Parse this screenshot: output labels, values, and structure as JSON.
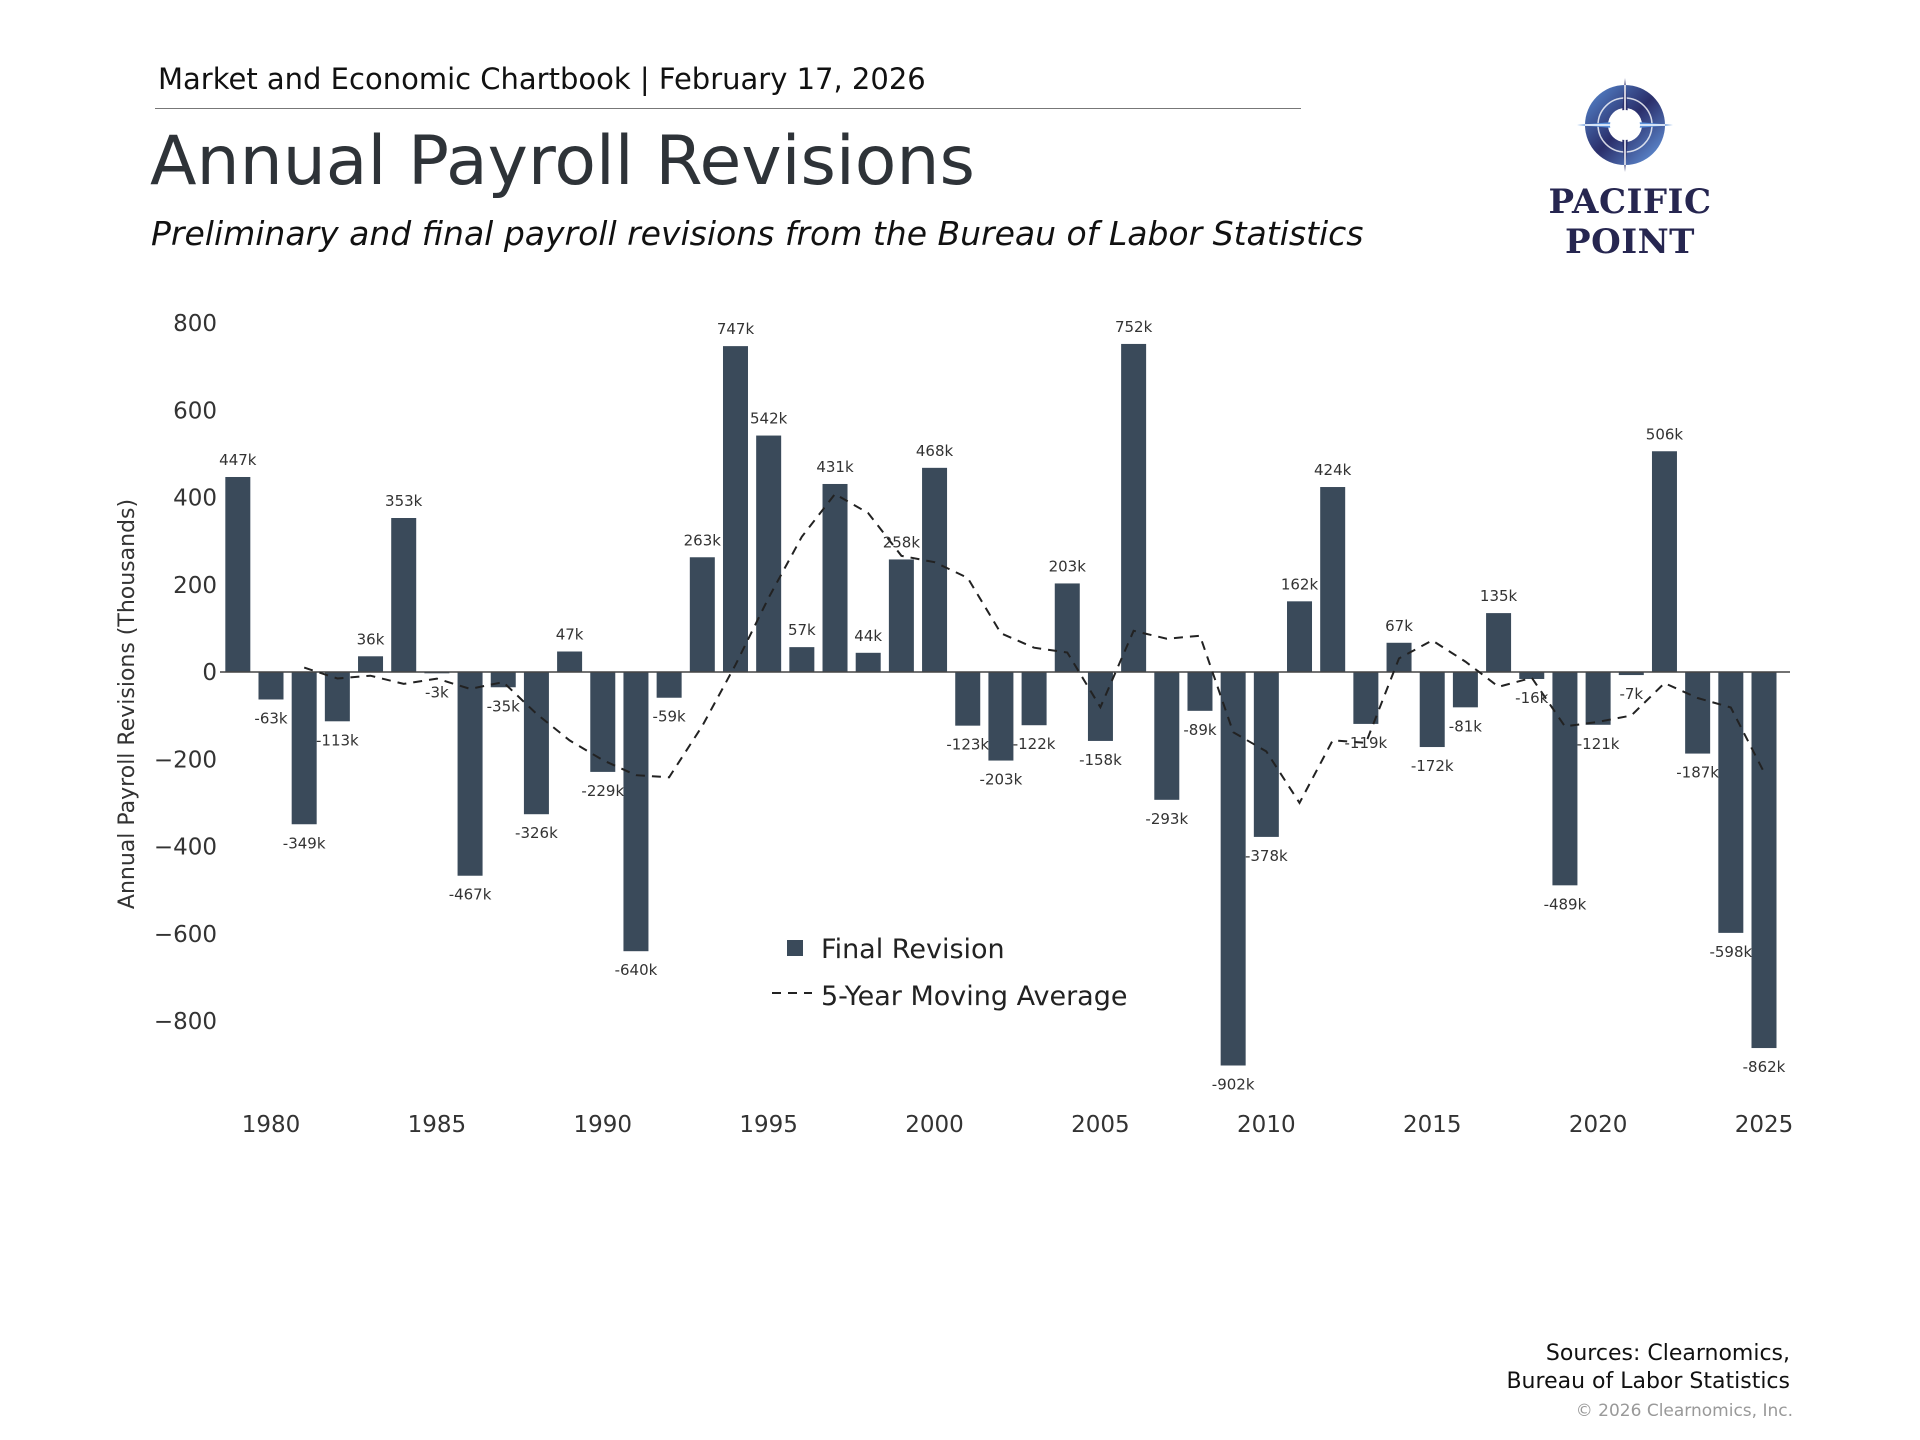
{
  "header": {
    "chartbook": "Market and Economic Chartbook | February 17, 2026",
    "title": "Annual Payroll Revisions",
    "subtitle": "Preliminary and final payroll revisions from the Bureau of Labor Statistics"
  },
  "logo": {
    "text": "PACIFIC POINT",
    "icon": "compass-icon"
  },
  "footer": {
    "sources_line1": "Sources: Clearnomics,",
    "sources_line2": "Bureau of Labor Statistics",
    "copyright": "© 2026 Clearnomics, Inc."
  },
  "chart_data": {
    "type": "bar",
    "title": "",
    "xlabel": "",
    "ylabel": "Annual Payroll Revisions (Thousands)",
    "ylim": [
      -950,
      850
    ],
    "yticks": [
      800,
      600,
      400,
      200,
      0,
      -200,
      -400,
      -600,
      -800
    ],
    "ytick_labels": [
      "800",
      "600",
      "400",
      "200",
      "0",
      "−200",
      "−400",
      "−600",
      "−800"
    ],
    "xticks": [
      1980,
      1985,
      1990,
      1995,
      2000,
      2005,
      2010,
      2015,
      2020,
      2025
    ],
    "grid": false,
    "legend_placement": "bottom-center",
    "colors": {
      "bar": "#3a4a5a",
      "line": "#222222"
    },
    "x": [
      1979,
      1980,
      1981,
      1982,
      1983,
      1984,
      1985,
      1986,
      1987,
      1988,
      1989,
      1990,
      1991,
      1992,
      1993,
      1994,
      1995,
      1996,
      1997,
      1998,
      1999,
      2000,
      2001,
      2002,
      2003,
      2004,
      2005,
      2006,
      2007,
      2008,
      2009,
      2010,
      2011,
      2012,
      2013,
      2014,
      2015,
      2016,
      2017,
      2018,
      2019,
      2020,
      2021,
      2022,
      2023,
      2024,
      2025
    ],
    "series": [
      {
        "name": "Final Revision",
        "type": "bar",
        "values": [
          447,
          -63,
          -349,
          -113,
          36,
          353,
          -3,
          -467,
          -35,
          -326,
          47,
          -229,
          -640,
          -59,
          263,
          747,
          542,
          57,
          431,
          44,
          258,
          468,
          -123,
          -203,
          -122,
          203,
          -158,
          752,
          -293,
          -89,
          -902,
          -378,
          162,
          424,
          -119,
          67,
          -172,
          -81,
          135,
          -16,
          -489,
          -121,
          -7,
          506,
          -187,
          -598,
          -862
        ],
        "labels": [
          "447k",
          "-63k",
          "-349k",
          "-113k",
          "36k",
          "353k",
          "-3k",
          "-467k",
          "-35k",
          "-326k",
          "47k",
          "-229k",
          "-640k",
          "-59k",
          "263k",
          "747k",
          "542k",
          "57k",
          "431k",
          "44k",
          "258k",
          "468k",
          "-123k",
          "-203k",
          "-122k",
          "203k",
          "-158k",
          "752k",
          "-293k",
          "-89k",
          "-902k",
          "-378k",
          "162k",
          "424k",
          "-119k",
          "67k",
          "-172k",
          "-81k",
          "135k",
          "-16k",
          "-489k",
          "-121k",
          "-7k",
          "506k",
          "-187k",
          "-598k",
          "-862k"
        ]
      },
      {
        "name": "5-Year Moving Average",
        "type": "line",
        "style": "dashed",
        "x": [
          1981,
          1982,
          1983,
          1984,
          1985,
          1986,
          1987,
          1988,
          1989,
          1990,
          1991,
          1992,
          1993,
          1994,
          1995,
          1996,
          1997,
          1998,
          1999,
          2000,
          2001,
          2002,
          2003,
          2004,
          2005,
          2006,
          2007,
          2008,
          2009,
          2010,
          2011,
          2012,
          2013,
          2014,
          2015,
          2016,
          2017,
          2018,
          2019,
          2020,
          2021,
          2022,
          2023,
          2024,
          2025
        ],
        "values": [
          10,
          -15,
          -8.4,
          -27.2,
          -15.2,
          -38.8,
          -23.2,
          -95.6,
          -156.8,
          -202,
          -236.6,
          -241.4,
          -123.6,
          16.4,
          170.6,
          310,
          408,
          364.2,
          266.4,
          251.6,
          215.6,
          88.8,
          55.6,
          44.6,
          -80.6,
          94.4,
          76.4,
          83,
          -138,
          -182,
          -300,
          -156.6,
          -162.6,
          31.2,
          72.4,
          23.8,
          -34,
          -13.4,
          -124.6,
          -114.4,
          -99.6,
          -25.4,
          -59.6,
          -81.4,
          -229.6
        ]
      }
    ]
  }
}
